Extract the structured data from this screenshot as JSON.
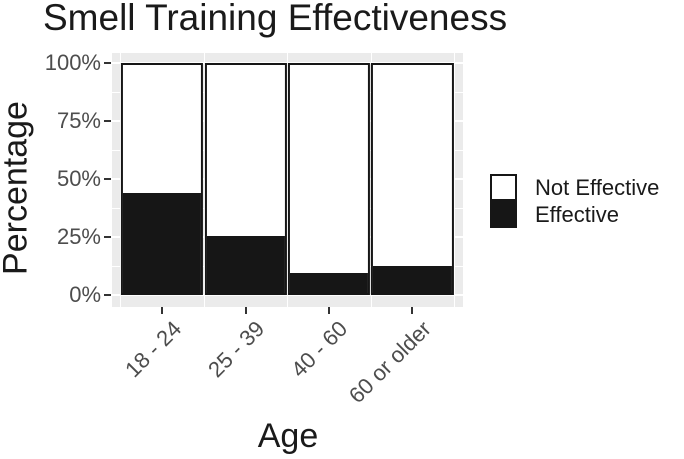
{
  "title": "Smell Training Effectiveness",
  "axes": {
    "x_title": "Age",
    "y_title": "Percentage"
  },
  "legend": {
    "items": [
      {
        "label": "Not Effective",
        "swatch": "white-square",
        "color": "#ffffff"
      },
      {
        "label": "Effective",
        "swatch": "black-square",
        "color": "#161616"
      }
    ]
  },
  "chart_data": {
    "type": "bar",
    "stacked": true,
    "orientation": "vertical",
    "title": "Smell Training Effectiveness",
    "xlabel": "Age",
    "ylabel": "Percentage",
    "categories": [
      "18 - 24",
      "25 - 39",
      "40 - 60",
      "60 or older"
    ],
    "series": [
      {
        "name": "Effective",
        "color": "#161616",
        "values": [
          44,
          25,
          9,
          12
        ]
      },
      {
        "name": "Not Effective",
        "color": "#ffffff",
        "values": [
          56,
          75,
          91,
          88
        ]
      }
    ],
    "ylim": [
      0,
      100
    ],
    "y_ticks": [
      {
        "value": 100,
        "label": "100%"
      },
      {
        "value": 75,
        "label": "75%"
      },
      {
        "value": 50,
        "label": "50%"
      },
      {
        "value": 25,
        "label": "25%"
      },
      {
        "value": 0,
        "label": "0%"
      }
    ],
    "minor_y_gridlines": [
      12.5,
      37.5,
      62.5,
      87.5
    ],
    "grid": true,
    "legend_position": "right",
    "panel_background": "#ebebeb"
  },
  "colors": {
    "effective_fill": "#161616",
    "not_effective_fill": "#ffffff",
    "bar_border": "#161616",
    "panel_background": "#ebebeb",
    "gridline": "#ffffff",
    "axis_text": "#4d4d4d",
    "title_text": "#1a1a1a",
    "tick_mark": "#333333"
  }
}
